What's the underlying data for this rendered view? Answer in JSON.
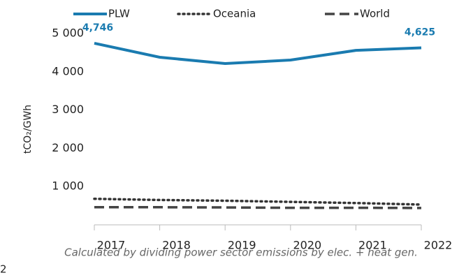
{
  "chart_data": {
    "type": "line",
    "ylabel": "tCO₂/GWh",
    "categories": [
      "2017",
      "2018",
      "2019",
      "2020",
      "2021",
      "2022"
    ],
    "series": [
      {
        "name": "PLW",
        "color": "#1a7bb0",
        "style": "solid",
        "values": [
          4746,
          4380,
          4215,
          4306,
          4560,
          4625
        ],
        "value_labels": [
          "4,746",
          null,
          null,
          null,
          null,
          "4,625"
        ]
      },
      {
        "name": "Oceania",
        "color": "#333333",
        "style": "dotted",
        "values": [
          680,
          650,
          630,
          600,
          570,
          530
        ]
      },
      {
        "name": "World",
        "color": "#444444",
        "style": "dashed",
        "values": [
          460,
          460,
          455,
          445,
          445,
          440
        ]
      }
    ],
    "ylim": [
      0,
      5000
    ],
    "yticks": [
      {
        "value": 1000,
        "label": "1 000"
      },
      {
        "value": 2000,
        "label": "2 000"
      },
      {
        "value": 3000,
        "label": "3 000"
      },
      {
        "value": 4000,
        "label": "4 000"
      },
      {
        "value": 5000,
        "label": "5 000"
      }
    ],
    "grid": false,
    "legend": "top",
    "footnote": "Calculated by dividing power sector emissions by elec. + heat gen.",
    "side_text": "2"
  }
}
